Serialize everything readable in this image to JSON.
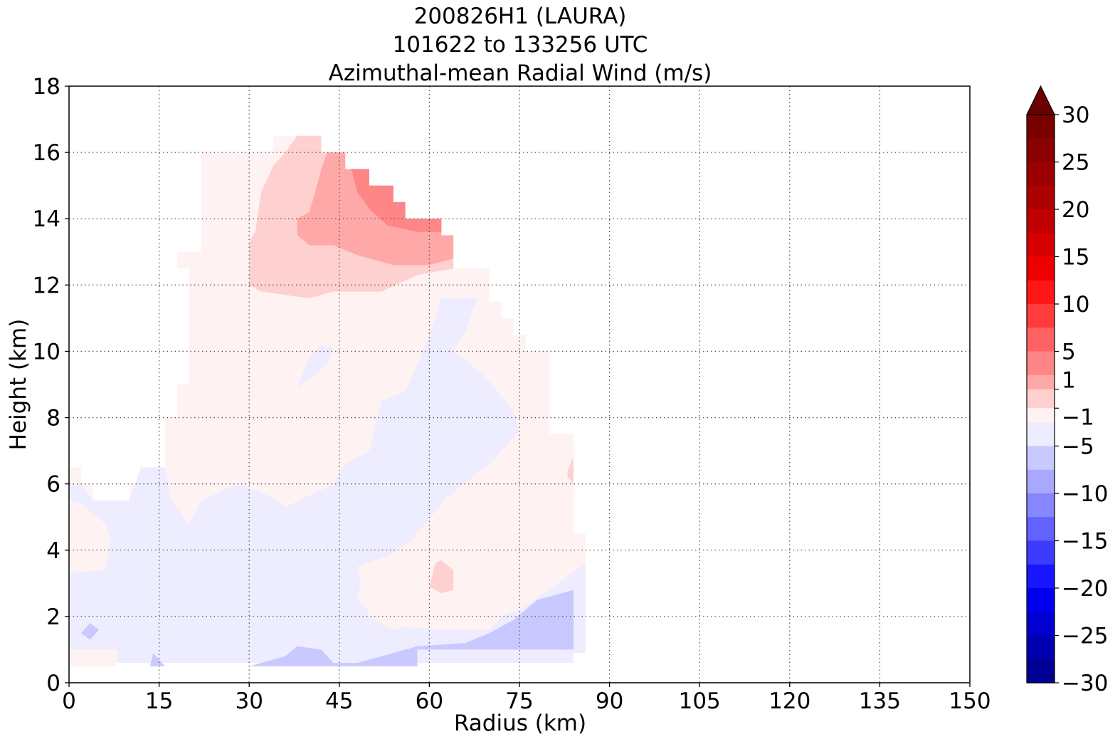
{
  "chart_data": {
    "type": "contour",
    "title_lines": [
      "200826H1 (LAURA)",
      "101622 to 133256 UTC",
      "Azimuthal-mean Radial Wind (m/s)"
    ],
    "xlabel": "Radius (km)",
    "ylabel": "Height (km)",
    "xlim": [
      0,
      150
    ],
    "ylim": [
      0,
      18
    ],
    "x_ticks": [
      "0",
      "15",
      "30",
      "45",
      "60",
      "75",
      "90",
      "105",
      "120",
      "135",
      "150"
    ],
    "y_ticks": [
      "0",
      "2",
      "4",
      "6",
      "8",
      "10",
      "12",
      "14",
      "16",
      "18"
    ],
    "grid": true,
    "grid_style": "dotted",
    "colorbar": {
      "range": [
        -30,
        30
      ],
      "extend": "max",
      "tick_labels": [
        "30",
        "25",
        "20",
        "15",
        "10",
        "5",
        "1",
        "−1",
        "−5",
        "−10",
        "−15",
        "−20",
        "−25",
        "−30"
      ],
      "tick_values": [
        30,
        25,
        20,
        15,
        10,
        5,
        1,
        -1,
        -5,
        -10,
        -15,
        -20,
        -25,
        -30
      ],
      "levels": [
        30,
        27.5,
        25,
        22.5,
        20,
        17.5,
        15,
        12.5,
        10,
        7.5,
        5,
        2.5,
        1,
        -1,
        -2.5,
        -5,
        -7.5,
        -10,
        -12.5,
        -15,
        -17.5,
        -20,
        -22.5,
        -25,
        -27.5,
        -30
      ],
      "colors": [
        "#7a0000",
        "#8b0000",
        "#9b0000",
        "#ad0000",
        "#c00000",
        "#d60000",
        "#ee0000",
        "#ff1616",
        "#ff3c3c",
        "#ff6262",
        "#ff8686",
        "#ffa8a8",
        "#ffd0d0",
        "#fff2f2",
        "#ededff",
        "#c9c9ff",
        "#a8a8ff",
        "#8686ff",
        "#6262ff",
        "#3c3cff",
        "#1616ff",
        "#0000ee",
        "#0000d0",
        "#0000b0",
        "#000094",
        "#000078"
      ],
      "extend_color": "#6a0000"
    },
    "regions": [
      {
        "value": 0.5,
        "color": "#fff2f2",
        "km": [
          [
            0,
            6.5
          ],
          [
            2,
            6.5
          ],
          [
            2,
            6
          ],
          [
            4,
            6
          ],
          [
            4,
            5.5
          ],
          [
            10,
            5.5
          ],
          [
            10,
            6
          ],
          [
            12,
            6
          ],
          [
            12,
            6.5
          ],
          [
            16,
            6.5
          ],
          [
            16,
            8
          ],
          [
            18,
            8
          ],
          [
            18,
            9
          ],
          [
            20,
            9
          ],
          [
            20,
            12.5
          ],
          [
            18,
            12.5
          ],
          [
            18,
            13
          ],
          [
            22,
            13
          ],
          [
            22,
            16
          ],
          [
            34,
            16
          ],
          [
            34,
            16.5
          ],
          [
            42,
            16.5
          ],
          [
            42,
            16
          ],
          [
            46,
            16
          ],
          [
            46,
            15.5
          ],
          [
            50,
            15.5
          ],
          [
            50,
            15
          ],
          [
            54,
            15
          ],
          [
            54,
            14.5
          ],
          [
            56,
            14.5
          ],
          [
            56,
            14
          ],
          [
            62,
            14
          ],
          [
            62,
            13.5
          ],
          [
            64,
            13.5
          ],
          [
            64,
            12.5
          ],
          [
            70,
            12.5
          ],
          [
            70,
            11.5
          ],
          [
            72,
            11.5
          ],
          [
            72,
            11
          ],
          [
            74,
            11
          ],
          [
            74,
            10.5
          ],
          [
            76,
            10.5
          ],
          [
            76,
            10
          ],
          [
            80,
            10
          ],
          [
            80,
            7.5
          ],
          [
            84,
            7.5
          ],
          [
            84,
            4.5
          ],
          [
            86,
            4.5
          ],
          [
            86,
            3
          ],
          [
            84,
            3
          ],
          [
            84,
            1
          ],
          [
            68,
            1
          ],
          [
            58,
            1
          ],
          [
            30,
            1
          ],
          [
            8,
            1
          ],
          [
            8,
            0.5
          ],
          [
            0,
            0.5
          ]
        ]
      },
      {
        "value": -0.5,
        "color": "#ededff",
        "km": [
          [
            0,
            6
          ],
          [
            2,
            6
          ],
          [
            4,
            5.5
          ],
          [
            10,
            5.5
          ],
          [
            12,
            6.5
          ],
          [
            16,
            6.5
          ],
          [
            17,
            5.5
          ],
          [
            20,
            4.8
          ],
          [
            22,
            5.5
          ],
          [
            28,
            6
          ],
          [
            34,
            5.6
          ],
          [
            36,
            5.3
          ],
          [
            44,
            6
          ],
          [
            46,
            6.6
          ],
          [
            50,
            7
          ],
          [
            52,
            8.5
          ],
          [
            56,
            8.8
          ],
          [
            58,
            9.6
          ],
          [
            60,
            10.5
          ],
          [
            62,
            11.6
          ],
          [
            68,
            11.6
          ],
          [
            66,
            10.6
          ],
          [
            64,
            10
          ],
          [
            69,
            9.3
          ],
          [
            74,
            8.2
          ],
          [
            75,
            7.5
          ],
          [
            70,
            6.6
          ],
          [
            63,
            5.6
          ],
          [
            57,
            4.2
          ],
          [
            54,
            3.8
          ],
          [
            49,
            3.5
          ],
          [
            48,
            2.5
          ],
          [
            51,
            2
          ],
          [
            55,
            1.7
          ],
          [
            62,
            1.6
          ],
          [
            70,
            1.6
          ],
          [
            72,
            2
          ],
          [
            76,
            2.3
          ],
          [
            86,
            3.6
          ],
          [
            86,
            0.9
          ],
          [
            84,
            0.9
          ],
          [
            84,
            0.6
          ],
          [
            30,
            0.6
          ],
          [
            14,
            0.6
          ],
          [
            8,
            0.6
          ],
          [
            8,
            1
          ],
          [
            0,
            1
          ],
          [
            0,
            3.3
          ],
          [
            6,
            3.4
          ],
          [
            7,
            4.3
          ],
          [
            6,
            4.8
          ],
          [
            2,
            5.4
          ],
          [
            0,
            5.5
          ]
        ]
      },
      {
        "value": -0.5,
        "color": "#ededff",
        "km": [
          [
            38,
            8.9
          ],
          [
            40,
            9.8
          ],
          [
            42,
            10.2
          ],
          [
            44,
            10.1
          ],
          [
            43,
            9.6
          ],
          [
            41,
            9.3
          ]
        ]
      },
      {
        "value": 0.5,
        "color": "#fff2f2",
        "km": [
          [
            0,
            3.4
          ],
          [
            6,
            3.4
          ],
          [
            7,
            4.3
          ],
          [
            6,
            4.8
          ],
          [
            2,
            5.3
          ],
          [
            0,
            5.4
          ]
        ]
      },
      {
        "value": 0.5,
        "color": "#fff2f2",
        "km": [
          [
            48,
            3.5
          ],
          [
            54,
            3.9
          ],
          [
            57,
            4.3
          ],
          [
            63,
            5.6
          ],
          [
            70,
            6.6
          ],
          [
            75,
            7.6
          ],
          [
            76,
            8
          ],
          [
            80,
            8
          ],
          [
            80,
            7.5
          ],
          [
            84,
            7.5
          ],
          [
            84,
            4.5
          ],
          [
            80,
            3.5
          ],
          [
            76,
            3
          ],
          [
            70,
            2.7
          ],
          [
            66,
            2.4
          ],
          [
            60,
            1.9
          ],
          [
            54,
            1.6
          ],
          [
            50,
            2
          ]
        ]
      },
      {
        "value": -2.5,
        "color": "#c9c9ff",
        "km": [
          [
            30,
            0.5
          ],
          [
            36,
            0.8
          ],
          [
            38,
            1.1
          ],
          [
            42,
            1
          ],
          [
            44,
            0.6
          ],
          [
            48,
            0.6
          ],
          [
            52,
            0.8
          ],
          [
            58,
            1.1
          ],
          [
            66,
            1.2
          ],
          [
            70,
            1.5
          ],
          [
            74,
            1.9
          ],
          [
            78,
            2.5
          ],
          [
            84,
            2.8
          ],
          [
            84,
            1
          ],
          [
            72,
            1
          ],
          [
            58,
            1
          ],
          [
            58,
            0.5
          ]
        ]
      },
      {
        "value": -2.5,
        "color": "#c9c9ff",
        "km": [
          [
            13.5,
            0.5
          ],
          [
            14,
            0.9
          ],
          [
            15.5,
            0.6
          ],
          [
            16,
            0.5
          ]
        ]
      },
      {
        "value": -2.5,
        "color": "#c9c9ff",
        "km": [
          [
            2,
            1.5
          ],
          [
            3.5,
            1.3
          ],
          [
            5,
            1.6
          ],
          [
            3.5,
            1.8
          ]
        ]
      },
      {
        "value": -2.5,
        "color": "#c9c9ff",
        "km": [
          [
            82,
            1.1
          ],
          [
            84,
            1.2
          ],
          [
            84,
            1
          ],
          [
            82,
            1
          ]
        ]
      },
      {
        "value": 2.5,
        "color": "#ffd0d0",
        "km": [
          [
            30,
            12.5
          ],
          [
            30,
            13.3
          ],
          [
            31,
            13.6
          ],
          [
            32,
            14.8
          ],
          [
            34,
            15.6
          ],
          [
            36,
            16
          ],
          [
            38,
            16.5
          ],
          [
            42,
            16.5
          ],
          [
            42,
            16
          ],
          [
            46,
            16
          ],
          [
            46,
            15.5
          ],
          [
            50,
            15.5
          ],
          [
            50,
            15
          ],
          [
            54,
            15
          ],
          [
            54,
            14.5
          ],
          [
            56,
            14.5
          ],
          [
            56,
            14
          ],
          [
            62,
            14
          ],
          [
            62,
            13.5
          ],
          [
            64,
            13.5
          ],
          [
            64,
            12.5
          ],
          [
            58,
            12.3
          ],
          [
            52,
            11.8
          ],
          [
            44,
            11.8
          ],
          [
            40,
            11.6
          ],
          [
            32,
            11.8
          ],
          [
            30,
            12
          ]
        ]
      },
      {
        "value": 2.5,
        "color": "#ffd0d0",
        "km": [
          [
            60,
            2.9
          ],
          [
            61,
            3.6
          ],
          [
            62,
            3.7
          ],
          [
            64,
            3.4
          ],
          [
            64,
            2.8
          ],
          [
            62,
            2.7
          ]
        ]
      },
      {
        "value": 2.5,
        "color": "#ffd0d0",
        "km": [
          [
            83,
            6.4
          ],
          [
            84,
            6.8
          ],
          [
            84,
            6
          ],
          [
            83,
            6.2
          ]
        ]
      },
      {
        "value": 5,
        "color": "#ffa8a8",
        "km": [
          [
            38,
            13.5
          ],
          [
            38,
            14
          ],
          [
            40,
            14.2
          ],
          [
            41,
            14.8
          ],
          [
            42,
            15.5
          ],
          [
            43,
            16
          ],
          [
            46,
            16
          ],
          [
            46,
            15.5
          ],
          [
            50,
            15.5
          ],
          [
            50,
            15
          ],
          [
            54,
            15
          ],
          [
            54,
            14.5
          ],
          [
            56,
            14.5
          ],
          [
            56,
            14
          ],
          [
            62,
            14
          ],
          [
            62,
            13.5
          ],
          [
            64,
            13.5
          ],
          [
            64,
            12.8
          ],
          [
            60,
            12.6
          ],
          [
            54,
            12.6
          ],
          [
            48,
            12.9
          ],
          [
            44,
            13.2
          ],
          [
            40,
            13.2
          ]
        ]
      },
      {
        "value": 7.5,
        "color": "#ff8686",
        "km": [
          [
            47,
            15.5
          ],
          [
            50,
            15.5
          ],
          [
            50,
            15
          ],
          [
            54,
            15
          ],
          [
            54,
            14.5
          ],
          [
            56,
            14.5
          ],
          [
            56,
            14
          ],
          [
            62,
            14
          ],
          [
            62,
            13.6
          ],
          [
            58,
            13.6
          ],
          [
            53,
            13.8
          ],
          [
            50,
            14.3
          ],
          [
            48,
            14.8
          ]
        ]
      }
    ]
  }
}
